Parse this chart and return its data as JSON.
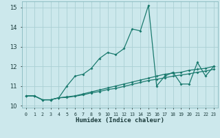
{
  "xlabel": "Humidex (Indice chaleur)",
  "x": [
    0,
    1,
    2,
    3,
    4,
    5,
    6,
    7,
    8,
    9,
    10,
    11,
    12,
    13,
    14,
    15,
    16,
    17,
    18,
    19,
    20,
    21,
    22,
    23
  ],
  "line1": [
    10.5,
    10.5,
    10.3,
    10.3,
    10.4,
    11.0,
    11.5,
    11.6,
    11.9,
    12.4,
    12.7,
    12.6,
    12.9,
    13.9,
    13.8,
    15.1,
    11.0,
    11.5,
    11.7,
    11.1,
    11.1,
    12.2,
    11.5,
    12.0
  ],
  "line2": [
    10.5,
    10.5,
    10.3,
    10.3,
    10.4,
    10.45,
    10.5,
    10.6,
    10.7,
    10.8,
    10.9,
    11.0,
    11.1,
    11.2,
    11.3,
    11.4,
    11.5,
    11.6,
    11.65,
    11.7,
    11.8,
    11.85,
    11.9,
    12.0
  ],
  "line3": [
    10.5,
    10.5,
    10.3,
    10.3,
    10.4,
    10.42,
    10.48,
    10.55,
    10.65,
    10.72,
    10.82,
    10.88,
    10.98,
    11.08,
    11.18,
    11.28,
    11.34,
    11.42,
    11.5,
    11.56,
    11.62,
    11.7,
    11.76,
    11.85
  ],
  "color": "#1a7a6e",
  "bg_color": "#cce8ec",
  "grid_color": "#aacfd4",
  "ylim": [
    9.9,
    15.3
  ],
  "yticks": [
    10,
    11,
    12,
    13,
    14,
    15
  ],
  "xlim": [
    -0.5,
    23.5
  ]
}
